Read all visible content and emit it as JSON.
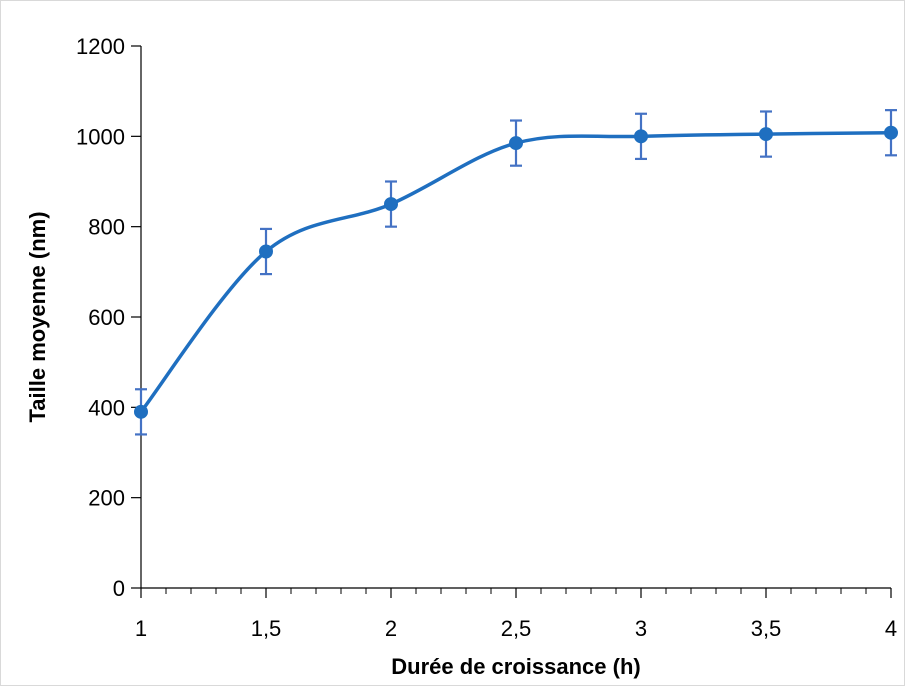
{
  "chart_data": {
    "type": "line",
    "title": "",
    "xlabel": "Durée de croissance (h)",
    "ylabel": "Taille moyenne (nm)",
    "x_tick_labels": [
      "1",
      "1,5",
      "2",
      "2,5",
      "3",
      "3,5",
      "4"
    ],
    "x_ticks": [
      1,
      1.5,
      2,
      2.5,
      3,
      3.5,
      4
    ],
    "y_tick_labels": [
      "0",
      "200",
      "400",
      "600",
      "800",
      "1000",
      "1200"
    ],
    "y_ticks": [
      0,
      200,
      400,
      600,
      800,
      1000,
      1200
    ],
    "xlim": [
      1,
      4
    ],
    "ylim": [
      0,
      1200
    ],
    "x_minor_step": 0.1,
    "grid": false,
    "smooth": true,
    "series": [
      {
        "x": [
          1,
          1.5,
          2,
          2.5,
          3,
          3.5,
          4
        ],
        "y": [
          390,
          745,
          850,
          985,
          1000,
          1005,
          1008
        ],
        "error": [
          50,
          50,
          50,
          50,
          50,
          50,
          50
        ],
        "color": "#1f6fc0",
        "error_color": "#4472c4"
      }
    ]
  }
}
